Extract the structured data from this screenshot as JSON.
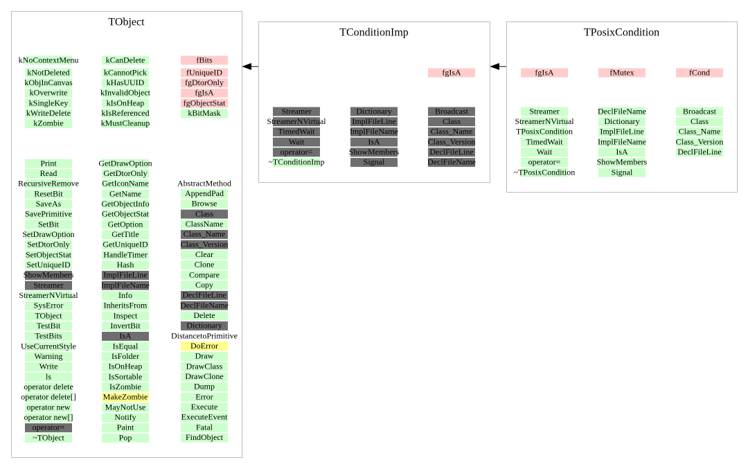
{
  "classes": [
    {
      "title": "TObject",
      "members": [
        [
          {
            "text": "kNoContextMenu",
            "style": "public"
          },
          {
            "text": "kNotDeleted",
            "style": "public"
          },
          {
            "text": "kObjInCanvas",
            "style": "public"
          },
          {
            "text": "kOverwrite",
            "style": "public"
          },
          {
            "text": "kSingleKey",
            "style": "public"
          },
          {
            "text": "kWriteDelete",
            "style": "public"
          },
          {
            "text": "kZombie",
            "style": "public"
          }
        ],
        [
          {
            "text": "kCanDelete",
            "style": "public"
          },
          {
            "text": "kCannotPick",
            "style": "public"
          },
          {
            "text": "kHasUUID",
            "style": "public"
          },
          {
            "text": "kInvalidObject",
            "style": "public"
          },
          {
            "text": "kIsOnHeap",
            "style": "public"
          },
          {
            "text": "kIsReferenced",
            "style": "public"
          },
          {
            "text": "kMustCleanup",
            "style": "public"
          }
        ],
        [
          {
            "text": "fBits",
            "style": "private"
          },
          {
            "text": "fUniqueID",
            "style": "private"
          },
          {
            "text": "fgDtorOnly",
            "style": "private"
          },
          {
            "text": "fgIsA",
            "style": "private"
          },
          {
            "text": "fgObjectStat",
            "style": "private"
          },
          {
            "text": "kBitMask",
            "style": "public"
          }
        ]
      ],
      "methods": [
        [
          {
            "text": "Print",
            "style": "public"
          },
          {
            "text": "Read",
            "style": "public"
          },
          {
            "text": "RecursiveRemove",
            "style": "public"
          },
          {
            "text": "ResetBit",
            "style": "public"
          },
          {
            "text": "SaveAs",
            "style": "public"
          },
          {
            "text": "SavePrimitive",
            "style": "public"
          },
          {
            "text": "SetBit",
            "style": "public"
          },
          {
            "text": "SetDrawOption",
            "style": "public"
          },
          {
            "text": "SetDtorOnly",
            "style": "public"
          },
          {
            "text": "SetObjectStat",
            "style": "public"
          },
          {
            "text": "SetUniqueID",
            "style": "public"
          },
          {
            "text": "ShowMembers",
            "style": "virtual"
          },
          {
            "text": "Streamer",
            "style": "virtual"
          },
          {
            "text": "StreamerNVirtual",
            "style": "public"
          },
          {
            "text": "SysError",
            "style": "public"
          },
          {
            "text": "TObject",
            "style": "public"
          },
          {
            "text": "TestBit",
            "style": "public"
          },
          {
            "text": "TestBits",
            "style": "public"
          },
          {
            "text": "UseCurrentStyle",
            "style": "public"
          },
          {
            "text": "Warning",
            "style": "public"
          },
          {
            "text": "Write",
            "style": "public"
          },
          {
            "text": "ls",
            "style": "public"
          },
          {
            "text": "operator delete",
            "style": "public"
          },
          {
            "text": "operator delete[]",
            "style": "public"
          },
          {
            "text": "operator new",
            "style": "public"
          },
          {
            "text": "operator new[]",
            "style": "public"
          },
          {
            "text": "operator=",
            "style": "virtual"
          },
          {
            "text": "~TObject",
            "style": "public"
          }
        ],
        [
          {
            "text": "GetDrawOption",
            "style": "public"
          },
          {
            "text": "GetDtorOnly",
            "style": "public"
          },
          {
            "text": "GetIconName",
            "style": "public"
          },
          {
            "text": "GetName",
            "style": "public"
          },
          {
            "text": "GetObjectInfo",
            "style": "public"
          },
          {
            "text": "GetObjectStat",
            "style": "public"
          },
          {
            "text": "GetOption",
            "style": "public"
          },
          {
            "text": "GetTitle",
            "style": "public"
          },
          {
            "text": "GetUniqueID",
            "style": "public"
          },
          {
            "text": "HandleTimer",
            "style": "public"
          },
          {
            "text": "Hash",
            "style": "public"
          },
          {
            "text": "ImplFileLine",
            "style": "virtual"
          },
          {
            "text": "ImplFileName",
            "style": "virtual"
          },
          {
            "text": "Info",
            "style": "public"
          },
          {
            "text": "InheritsFrom",
            "style": "public"
          },
          {
            "text": "Inspect",
            "style": "public"
          },
          {
            "text": "InvertBit",
            "style": "public"
          },
          {
            "text": "IsA",
            "style": "virtual"
          },
          {
            "text": "IsEqual",
            "style": "public"
          },
          {
            "text": "IsFolder",
            "style": "public"
          },
          {
            "text": "IsOnHeap",
            "style": "public"
          },
          {
            "text": "IsSortable",
            "style": "public"
          },
          {
            "text": "IsZombie",
            "style": "public"
          },
          {
            "text": "MakeZombie",
            "style": "protected"
          },
          {
            "text": "MayNotUse",
            "style": "public"
          },
          {
            "text": "Notify",
            "style": "public"
          },
          {
            "text": "Paint",
            "style": "public"
          },
          {
            "text": "Pop",
            "style": "public"
          }
        ],
        [
          {
            "text": "AbstractMethod",
            "style": "plain"
          },
          {
            "text": "AppendPad",
            "style": "public"
          },
          {
            "text": "Browse",
            "style": "public"
          },
          {
            "text": "Class",
            "style": "virtual"
          },
          {
            "text": "ClassName",
            "style": "public"
          },
          {
            "text": "Class_Name",
            "style": "virtual"
          },
          {
            "text": "Class_Version",
            "style": "virtual"
          },
          {
            "text": "Clear",
            "style": "public"
          },
          {
            "text": "Clone",
            "style": "public"
          },
          {
            "text": "Compare",
            "style": "public"
          },
          {
            "text": "Copy",
            "style": "public"
          },
          {
            "text": "DeclFileLine",
            "style": "virtual"
          },
          {
            "text": "DeclFileName",
            "style": "virtual"
          },
          {
            "text": "Delete",
            "style": "public"
          },
          {
            "text": "Dictionary",
            "style": "virtual"
          },
          {
            "text": "DistancetoPrimitive",
            "style": "plain"
          },
          {
            "text": "DoError",
            "style": "protected"
          },
          {
            "text": "Draw",
            "style": "public"
          },
          {
            "text": "DrawClass",
            "style": "public"
          },
          {
            "text": "DrawClone",
            "style": "public"
          },
          {
            "text": "Dump",
            "style": "public"
          },
          {
            "text": "Error",
            "style": "public"
          },
          {
            "text": "Execute",
            "style": "public"
          },
          {
            "text": "ExecuteEvent",
            "style": "public"
          },
          {
            "text": "Fatal",
            "style": "public"
          },
          {
            "text": "FindObject",
            "style": "public"
          }
        ]
      ]
    },
    {
      "title": "TConditionImp",
      "members": [
        [],
        [],
        [
          {
            "text": "fgIsA",
            "style": "private"
          }
        ]
      ],
      "methods": [
        [
          {
            "text": "Streamer",
            "style": "virtual"
          },
          {
            "text": "StreamerNVirtual",
            "style": "virtual"
          },
          {
            "text": "TimedWait",
            "style": "virtual"
          },
          {
            "text": "Wait",
            "style": "virtual"
          },
          {
            "text": "operator=",
            "style": "virtual"
          },
          {
            "text": "~TConditionImp",
            "style": "public"
          }
        ],
        [
          {
            "text": "Dictionary",
            "style": "virtual"
          },
          {
            "text": "ImplFileLine",
            "style": "virtual"
          },
          {
            "text": "ImplFileName",
            "style": "virtual"
          },
          {
            "text": "IsA",
            "style": "virtual"
          },
          {
            "text": "ShowMembers",
            "style": "virtual"
          },
          {
            "text": "Signal",
            "style": "virtual"
          }
        ],
        [
          {
            "text": "Broadcast",
            "style": "virtual"
          },
          {
            "text": "Class",
            "style": "virtual"
          },
          {
            "text": "Class_Name",
            "style": "virtual"
          },
          {
            "text": "Class_Version",
            "style": "virtual"
          },
          {
            "text": "DeclFileLine",
            "style": "virtual"
          },
          {
            "text": "DeclFileName",
            "style": "virtual"
          }
        ]
      ]
    },
    {
      "title": "TPosixCondition",
      "members": [
        [
          {
            "text": "fgIsA",
            "style": "private"
          }
        ],
        [
          {
            "text": "fMutex",
            "style": "private"
          }
        ],
        [
          {
            "text": "fCond",
            "style": "private"
          }
        ]
      ],
      "methods": [
        [
          {
            "text": "Streamer",
            "style": "public"
          },
          {
            "text": "StreamerNVirtual",
            "style": "public"
          },
          {
            "text": "TPosixCondition",
            "style": "public"
          },
          {
            "text": "TimedWait",
            "style": "public"
          },
          {
            "text": "Wait",
            "style": "public"
          },
          {
            "text": "operator=",
            "style": "public"
          },
          {
            "text": "~TPosixCondition",
            "style": "public"
          }
        ],
        [
          {
            "text": "DeclFileName",
            "style": "public"
          },
          {
            "text": "Dictionary",
            "style": "public"
          },
          {
            "text": "ImplFileLine",
            "style": "public"
          },
          {
            "text": "ImplFileName",
            "style": "public"
          },
          {
            "text": "IsA",
            "style": "public"
          },
          {
            "text": "ShowMembers",
            "style": "public"
          },
          {
            "text": "Signal",
            "style": "public"
          }
        ],
        [
          {
            "text": "Broadcast",
            "style": "public"
          },
          {
            "text": "Class",
            "style": "public"
          },
          {
            "text": "Class_Name",
            "style": "public"
          },
          {
            "text": "Class_Version",
            "style": "public"
          },
          {
            "text": "DeclFileLine",
            "style": "public"
          }
        ]
      ]
    }
  ]
}
